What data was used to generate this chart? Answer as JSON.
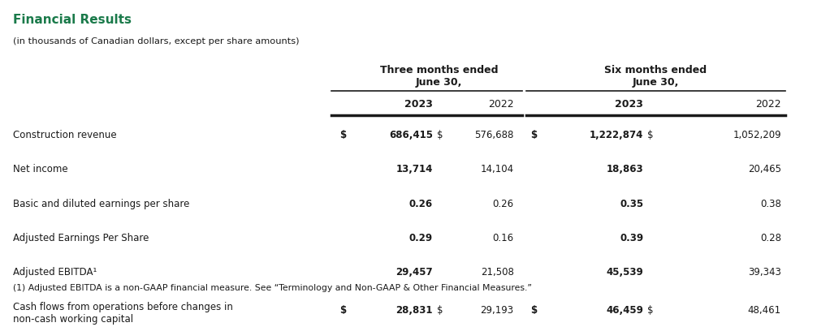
{
  "title": "Financial Results",
  "subtitle": "(in thousands of Canadian dollars, except per share amounts)",
  "title_color": "#1a7a4a",
  "col_group1_header": "Three months ended\nJune 30,",
  "col_group2_header": "Six months ended\nJune 30,",
  "rows": [
    {
      "label": "Construction revenue",
      "dollar1": "$",
      "val1": "686,415",
      "dollar2": "$",
      "val2": "576,688",
      "dollar3": "$",
      "val3": "1,222,874",
      "dollar4": "$",
      "val4": "1,052,209"
    },
    {
      "label": "Net income",
      "dollar1": "",
      "val1": "13,714",
      "dollar2": "",
      "val2": "14,104",
      "dollar3": "",
      "val3": "18,863",
      "dollar4": "",
      "val4": "20,465"
    },
    {
      "label": "Basic and diluted earnings per share",
      "dollar1": "",
      "val1": "0.26",
      "dollar2": "",
      "val2": "0.26",
      "dollar3": "",
      "val3": "0.35",
      "dollar4": "",
      "val4": "0.38"
    },
    {
      "label": "Adjusted Earnings Per Share",
      "dollar1": "",
      "val1": "0.29",
      "dollar2": "",
      "val2": "0.16",
      "dollar3": "",
      "val3": "0.39",
      "dollar4": "",
      "val4": "0.28"
    },
    {
      "label": "Adjusted EBITDA¹",
      "dollar1": "",
      "val1": "29,457",
      "dollar2": "",
      "val2": "21,508",
      "dollar3": "",
      "val3": "45,539",
      "dollar4": "",
      "val4": "39,343"
    },
    {
      "label": "Cash flows from operations before changes in\nnon-cash working capital",
      "dollar1": "$",
      "val1": "28,831",
      "dollar2": "$",
      "val2": "29,193",
      "dollar3": "$",
      "val3": "46,459",
      "dollar4": "$",
      "val4": "48,461"
    }
  ],
  "footnote": "(1) Adjusted EBITDA is a non-GAAP financial measure. See “Terminology and Non-GAAP & Other Financial Measures.”",
  "bg_color": "#ffffff",
  "text_color": "#1a1a1a",
  "line_color": "#1a1a1a"
}
